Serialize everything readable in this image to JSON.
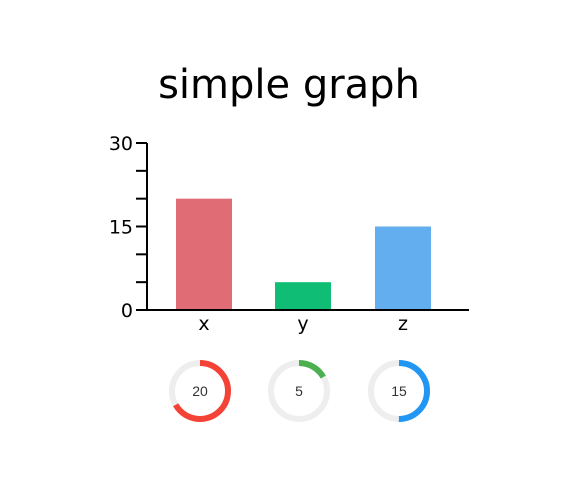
{
  "chart_data": {
    "type": "bar",
    "title": "simple graph",
    "categories": [
      "x",
      "y",
      "z"
    ],
    "values": [
      20,
      5,
      15
    ],
    "colors": [
      "#e06c75",
      "#10bd74",
      "#62aeee"
    ],
    "ylim": [
      0,
      30
    ],
    "yticks": [
      0,
      15,
      30
    ],
    "minor_yticks": [
      5,
      10,
      20,
      25
    ],
    "xlabel": "",
    "ylabel": "",
    "grid": false,
    "donuts": {
      "max": 30,
      "track_color": "#eeeeee",
      "items": [
        {
          "category": "x",
          "value": 20,
          "label": "20",
          "color": "#f44336"
        },
        {
          "category": "y",
          "value": 5,
          "label": "5",
          "color": "#4caf50"
        },
        {
          "category": "z",
          "value": 15,
          "label": "15",
          "color": "#2196f3"
        }
      ]
    }
  }
}
